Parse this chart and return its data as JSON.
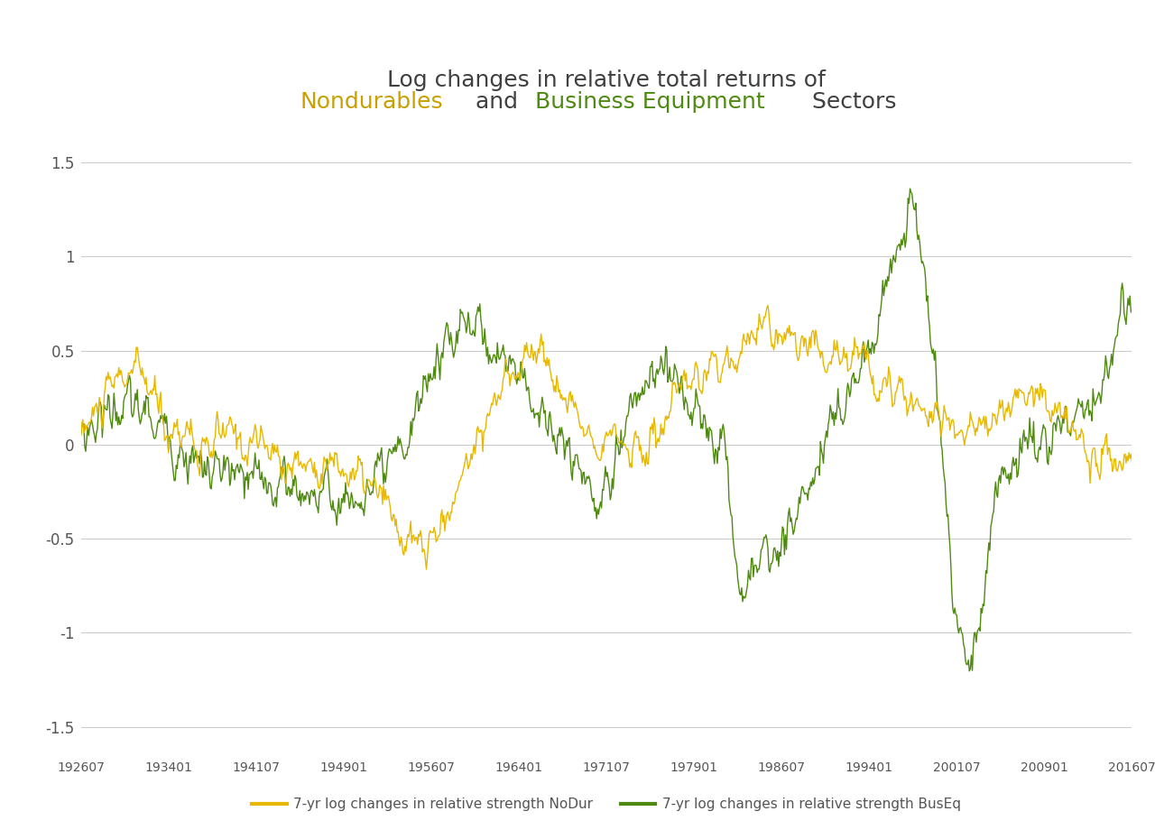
{
  "title_line1": "Log changes in relative total returns of",
  "title_line2_parts": [
    {
      "text": "Nondurables",
      "color": "#C8A000"
    },
    {
      "text": " and ",
      "color": "#404040"
    },
    {
      "text": "Business Equipment",
      "color": "#4F8A10"
    },
    {
      "text": " Sectors",
      "color": "#404040"
    }
  ],
  "nodur_color": "#E8B800",
  "buseq_color": "#4F8A10",
  "ylim": [
    -1.65,
    1.65
  ],
  "yticks": [
    -1.5,
    -1.0,
    -0.5,
    0,
    0.5,
    1.0,
    1.5
  ],
  "legend_nodur": "7-yr log changes in relative strength NoDur",
  "legend_buseq": "7-yr log changes in relative strength BusEq",
  "background_color": "#FFFFFF",
  "grid_color": "#CCCCCC",
  "title_fontsize": 18,
  "tick_fontsize": 11
}
